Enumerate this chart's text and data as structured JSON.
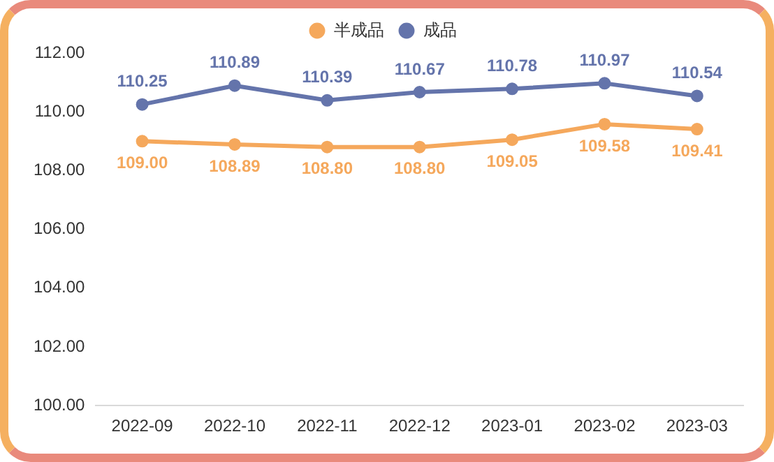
{
  "chart_data": {
    "type": "line",
    "categories": [
      "2022-09",
      "2022-10",
      "2022-11",
      "2022-12",
      "2023-01",
      "2023-02",
      "2023-03"
    ],
    "series": [
      {
        "name": "半成品",
        "color": "#f5a85c",
        "values": [
          109.0,
          108.89,
          108.8,
          108.8,
          109.05,
          109.58,
          109.41
        ],
        "value_labels": [
          "109.00",
          "108.89",
          "108.80",
          "108.80",
          "109.05",
          "109.58",
          "109.41"
        ]
      },
      {
        "name": "成品",
        "color": "#6474ab",
        "values": [
          110.25,
          110.89,
          110.39,
          110.67,
          110.78,
          110.97,
          110.54
        ],
        "value_labels": [
          "110.25",
          "110.89",
          "110.39",
          "110.67",
          "110.78",
          "110.97",
          "110.54"
        ]
      }
    ],
    "ylim": [
      100,
      112
    ],
    "yticks": [
      {
        "value": 100,
        "label": "100.00"
      },
      {
        "value": 102,
        "label": "102.00"
      },
      {
        "value": 104,
        "label": "104.00"
      },
      {
        "value": 106,
        "label": "106.00"
      },
      {
        "value": 108,
        "label": "108.00"
      },
      {
        "value": 110,
        "label": "110.00"
      },
      {
        "value": 112,
        "label": "112.00"
      }
    ],
    "grid": false,
    "legend": "top",
    "marker": "circle",
    "line_style": "solid"
  }
}
